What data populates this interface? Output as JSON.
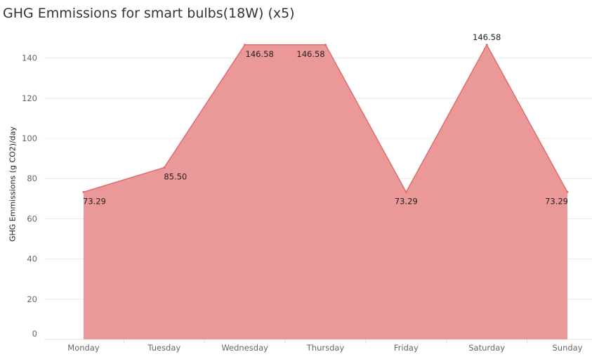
{
  "chart_data": {
    "type": "area",
    "title": "GHG Emmissions for smart bulbs(18W) (x5)",
    "xlabel": "",
    "ylabel": "GHG Emmissions (g CO2)/day",
    "categories": [
      "Monday",
      "Tuesday",
      "Wednesday",
      "Thursday",
      "Friday",
      "Saturday",
      "Sunday"
    ],
    "values": [
      73.29,
      85.5,
      146.58,
      146.58,
      73.29,
      146.58,
      73.29
    ],
    "data_labels": [
      "73.29",
      "85.50",
      "146.58",
      "146.58",
      "73.29",
      "146.58",
      "73.29"
    ],
    "yticks": [
      0,
      20,
      40,
      60,
      80,
      100,
      120,
      140
    ],
    "ylim": [
      0,
      152
    ],
    "grid": true,
    "colors": {
      "fill": "#e88686",
      "line": "#e06d6d",
      "grid": "#ececec"
    }
  }
}
